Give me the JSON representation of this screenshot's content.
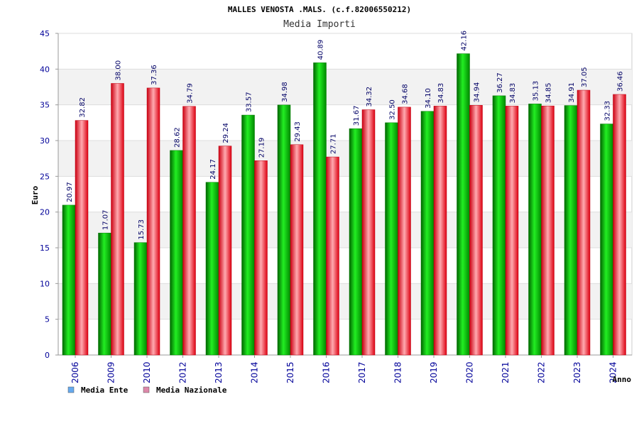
{
  "chart_data": {
    "type": "bar",
    "title": "MALLES VENOSTA .MALS. (c.f.82006550212)",
    "subtitle": "Media Importi",
    "xlabel": "Anno",
    "ylabel": "Euro",
    "ylim": [
      0,
      45
    ],
    "yticks": [
      0,
      5,
      10,
      15,
      20,
      25,
      30,
      35,
      40,
      45
    ],
    "grid": true,
    "legend_position": "bottom-left",
    "categories": [
      "2006",
      "2009",
      "2010",
      "2012",
      "2013",
      "2014",
      "2015",
      "2016",
      "2017",
      "2018",
      "2019",
      "2020",
      "2021",
      "2022",
      "2023",
      "2024"
    ],
    "series": [
      {
        "name": "Media Ente",
        "color": "#00cc00",
        "legend_color": "#66aaee",
        "values": [
          20.97,
          17.07,
          15.73,
          28.62,
          24.17,
          33.57,
          34.98,
          40.89,
          31.67,
          32.5,
          34.1,
          42.16,
          36.27,
          35.13,
          34.91,
          32.33
        ],
        "labels": [
          "20.97",
          "17.07",
          "15.73",
          "28.62",
          "24.17",
          "33.57",
          "34.98",
          "40.89",
          "31.67",
          "32.50",
          "34.10",
          "42.16",
          "36.27",
          "35.13",
          "34.91",
          "32.33"
        ]
      },
      {
        "name": "Media Nazionale",
        "color": "#ee2233",
        "legend_color": "#dd88aa",
        "values": [
          32.82,
          38.0,
          37.36,
          34.79,
          29.24,
          27.19,
          29.43,
          27.71,
          34.32,
          34.68,
          34.83,
          34.94,
          34.83,
          34.85,
          37.05,
          36.46
        ],
        "labels": [
          "32.82",
          "38.00",
          "37.36",
          "34.79",
          "29.24",
          "27.19",
          "29.43",
          "27.71",
          "34.32",
          "34.68",
          "34.83",
          "34.94",
          "34.83",
          "34.85",
          "37.05",
          "36.46"
        ]
      }
    ]
  }
}
